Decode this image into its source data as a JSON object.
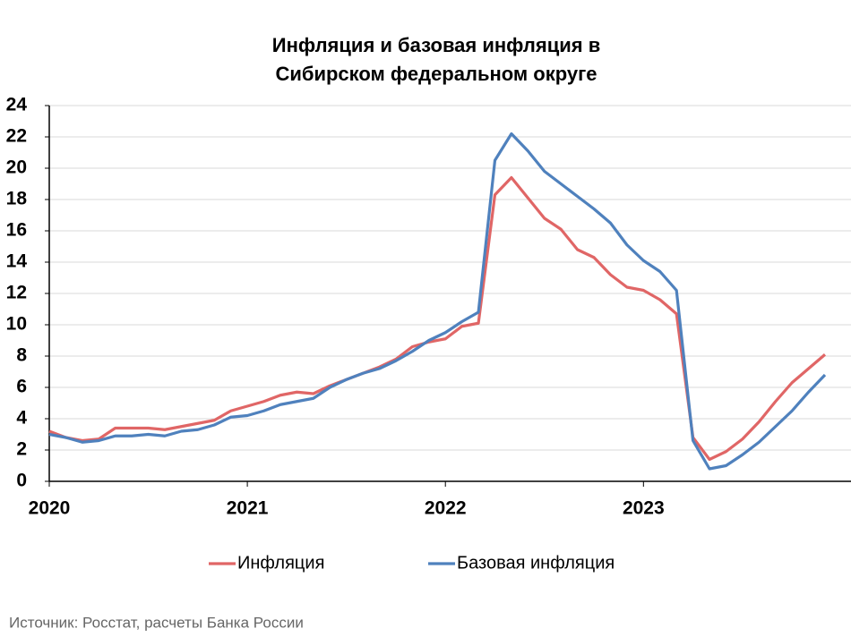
{
  "chart_data": {
    "type": "line",
    "title": [
      "Инфляция и базовая инфляция в",
      "Сибирском федеральном округе"
    ],
    "categories": [
      "2020",
      null,
      null,
      null,
      null,
      null,
      null,
      null,
      null,
      null,
      null,
      null,
      "2021",
      null,
      null,
      null,
      null,
      null,
      null,
      null,
      null,
      null,
      null,
      null,
      "2022",
      null,
      null,
      null,
      null,
      null,
      null,
      null,
      null,
      null,
      null,
      null,
      "2023",
      null,
      null,
      null,
      null,
      null,
      null,
      null,
      null,
      null,
      null,
      null
    ],
    "series": [
      {
        "name": "Инфляция",
        "color": "#e06666",
        "values": [
          3.2,
          2.8,
          2.6,
          2.7,
          3.4,
          3.4,
          3.4,
          3.3,
          3.5,
          3.7,
          3.9,
          4.5,
          4.8,
          5.1,
          5.5,
          5.7,
          5.6,
          6.1,
          6.5,
          6.9,
          7.3,
          7.8,
          8.6,
          8.9,
          9.1,
          9.9,
          10.1,
          18.3,
          19.4,
          18.1,
          16.8,
          16.1,
          14.8,
          14.3,
          13.2,
          12.4,
          12.2,
          11.6,
          10.7,
          2.8,
          1.4,
          1.9,
          2.7,
          3.8,
          5.1,
          6.3,
          7.2,
          8.1
        ]
      },
      {
        "name": "Базовая инфляция",
        "color": "#4f81bd",
        "values": [
          3.0,
          2.8,
          2.5,
          2.6,
          2.9,
          2.9,
          3.0,
          2.9,
          3.2,
          3.3,
          3.6,
          4.1,
          4.2,
          4.5,
          4.9,
          5.1,
          5.3,
          6.0,
          6.5,
          6.9,
          7.2,
          7.7,
          8.3,
          9.0,
          9.5,
          10.2,
          10.8,
          20.5,
          22.2,
          21.1,
          19.8,
          19.0,
          18.2,
          17.4,
          16.5,
          15.1,
          14.1,
          13.4,
          12.2,
          2.6,
          0.8,
          1.0,
          1.7,
          2.5,
          3.5,
          4.5,
          5.7,
          6.8
        ]
      }
    ],
    "ylim": [
      0,
      24
    ],
    "yticks": [
      0,
      2,
      4,
      6,
      8,
      10,
      12,
      14,
      16,
      18,
      20,
      22,
      24
    ],
    "grid": true,
    "legend": "bottom",
    "source": "Источник: Росстат, расчеты Банка России"
  }
}
